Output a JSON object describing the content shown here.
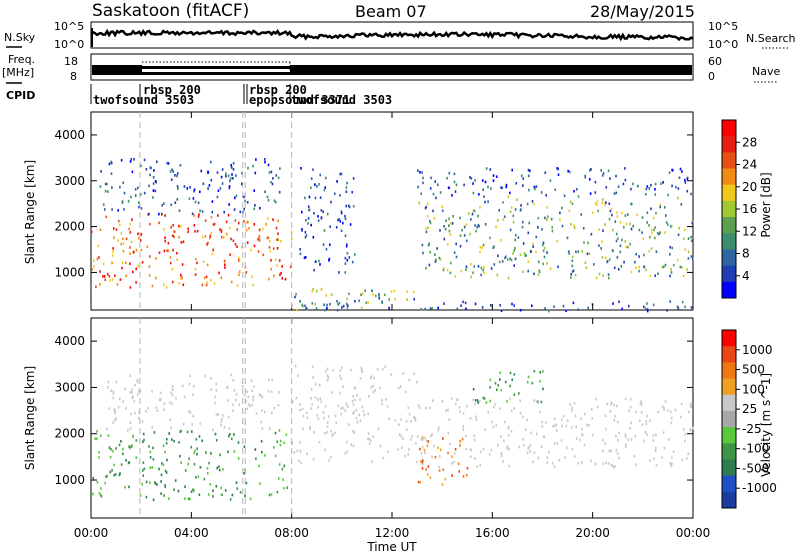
{
  "header": {
    "station": "Saskatoon (fitACF)",
    "beam": "Beam 07",
    "date": "28/May/2015"
  },
  "side_labels": {
    "nsky": "N.Sky",
    "freq": "Freq.",
    "mhz": "[MHz]",
    "cpid": "CPID",
    "nsearch": "N.Search",
    "nave": "Nave"
  },
  "small_axes": {
    "noise_left_ticks": [
      "10^5",
      "10^0"
    ],
    "noise_right_ticks": [
      "10^5",
      "10^0"
    ],
    "freq_left_ticks": [
      "18",
      "8"
    ],
    "nave_right_ticks": [
      "60",
      "0"
    ]
  },
  "cpid_labels": [
    {
      "text": "twofsound 3503",
      "time_h": 0.0
    },
    {
      "text": "rbsp 200",
      "time_h": 1.95
    },
    {
      "text": "rbsp 200",
      "time_h": 6.15
    },
    {
      "text": "epopsound 3371",
      "time_h": 6.05
    },
    {
      "text": "twofsound 3503",
      "time_h": 8.0
    }
  ],
  "colors": {
    "power_scale": [
      "#0000ff",
      "#1e3cb4",
      "#2e64a0",
      "#3c8c6e",
      "#5aa050",
      "#a0c832",
      "#f0c81e",
      "#f08c14",
      "#e65014",
      "#e61e14",
      "#ff0000"
    ],
    "velocity_scale": [
      "#1a3ca0",
      "#2050c8",
      "#2e7d50",
      "#3c9646",
      "#5ac83c",
      "#a8a8a8",
      "#c8c8c8",
      "#f0a020",
      "#f07814",
      "#e84614",
      "#ff0000"
    ],
    "ground_scatter": "#c8c8c8"
  },
  "chart_data": [
    {
      "type": "heatmap",
      "title": "Power",
      "xlabel": "Time UT",
      "ylabel": "Slant Range [km]",
      "x_ticks": [
        "00:00",
        "04:00",
        "08:00",
        "12:00",
        "16:00",
        "20:00",
        "00:00"
      ],
      "xlim_hours": [
        0,
        24
      ],
      "y_ticks": [
        1000,
        2000,
        3000,
        4000
      ],
      "ylim_km": [
        180,
        4500
      ],
      "colorbar_label": "Power [dB]",
      "colorbar_ticks": [
        4,
        8,
        12,
        16,
        20,
        24,
        28
      ],
      "colorbar_range": [
        0,
        30
      ],
      "regions": [
        {
          "t0": 0.0,
          "t1": 8.0,
          "r0": 700,
          "r1": 2300,
          "level": "high"
        },
        {
          "t0": 0.3,
          "t1": 7.5,
          "r0": 2300,
          "r1": 3500,
          "level": "low"
        },
        {
          "t0": 8.0,
          "t1": 13.0,
          "r0": 200,
          "r1": 700,
          "level": "mid"
        },
        {
          "t0": 8.3,
          "t1": 10.5,
          "r0": 1000,
          "r1": 3300,
          "level": "low"
        },
        {
          "t0": 13.0,
          "t1": 24.0,
          "r0": 900,
          "r1": 2700,
          "level": "mid"
        },
        {
          "t0": 13.0,
          "t1": 24.0,
          "r0": 2700,
          "r1": 3300,
          "level": "low"
        },
        {
          "t0": 8.0,
          "t1": 24.0,
          "r0": 180,
          "r1": 400,
          "level": "low"
        }
      ]
    },
    {
      "type": "heatmap",
      "title": "Velocity",
      "xlabel": "Time UT",
      "ylabel": "Slant Range [km]",
      "x_ticks": [
        "00:00",
        "04:00",
        "08:00",
        "12:00",
        "16:00",
        "20:00",
        "00:00"
      ],
      "xlim_hours": [
        0,
        24
      ],
      "y_ticks": [
        1000,
        2000,
        3000,
        4000
      ],
      "ylim_km": [
        180,
        4500
      ],
      "colorbar_label": "Velocity [m s^-1]",
      "colorbar_ticks": [
        "1000",
        "500",
        "100",
        "25",
        "-25",
        "-100",
        "-500",
        "-1000"
      ],
      "regions": [
        {
          "t0": 0.0,
          "t1": 8.0,
          "r0": 600,
          "r1": 2100,
          "level": "positive"
        },
        {
          "t0": 0.5,
          "t1": 7.5,
          "r0": 2100,
          "r1": 3300,
          "level": "ground"
        },
        {
          "t0": 8.0,
          "t1": 13.0,
          "r0": 1400,
          "r1": 3500,
          "level": "ground"
        },
        {
          "t0": 13.0,
          "t1": 15.0,
          "r0": 900,
          "r1": 2000,
          "level": "negative"
        },
        {
          "t0": 15.0,
          "t1": 18.0,
          "r0": 2700,
          "r1": 3400,
          "level": "positive"
        },
        {
          "t0": 13.0,
          "t1": 24.0,
          "r0": 1300,
          "r1": 2800,
          "level": "ground"
        }
      ]
    }
  ]
}
